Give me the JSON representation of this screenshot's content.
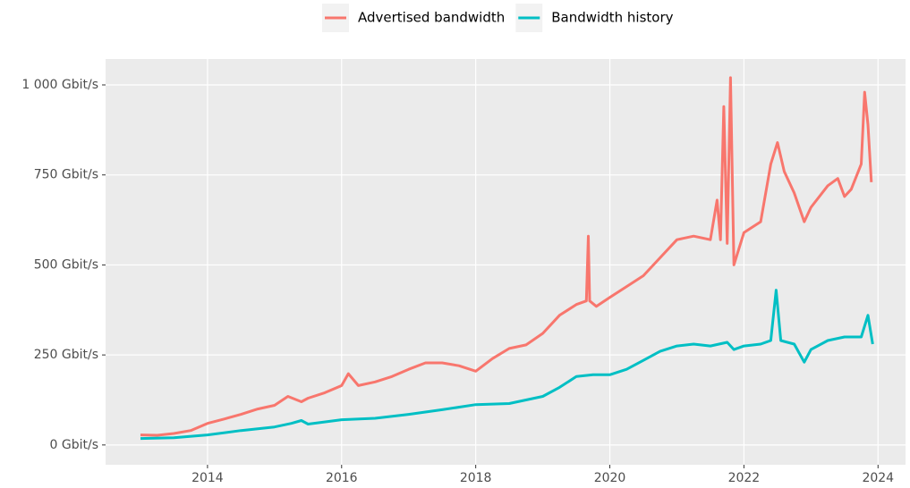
{
  "chart_data": {
    "type": "line",
    "legend": "top",
    "grid": true,
    "xlim": [
      2012.48,
      2024.41
    ],
    "xticks": [
      2014,
      2016,
      2018,
      2020,
      2022,
      2024
    ],
    "ylim": [
      -55,
      1072
    ],
    "yticks": [
      {
        "value": 0,
        "label": "0 Gbit/s"
      },
      {
        "value": 250,
        "label": "250 Gbit/s"
      },
      {
        "value": 500,
        "label": "500 Gbit/s"
      },
      {
        "value": 750,
        "label": "750 Gbit/s"
      },
      {
        "value": 1000,
        "label": "1 000 Gbit/s"
      }
    ],
    "series": [
      {
        "name": "Advertised bandwidth",
        "color": "#F8766D",
        "x": [
          2013.0,
          2013.25,
          2013.5,
          2013.75,
          2014.0,
          2014.25,
          2014.5,
          2014.75,
          2015.0,
          2015.2,
          2015.4,
          2015.5,
          2015.75,
          2016.0,
          2016.1,
          2016.25,
          2016.5,
          2016.75,
          2017.0,
          2017.25,
          2017.5,
          2017.75,
          2018.0,
          2018.25,
          2018.5,
          2018.75,
          2019.0,
          2019.25,
          2019.5,
          2019.65,
          2019.68,
          2019.7,
          2019.8,
          2020.0,
          2020.25,
          2020.5,
          2020.75,
          2021.0,
          2021.25,
          2021.5,
          2021.6,
          2021.65,
          2021.7,
          2021.75,
          2021.8,
          2021.85,
          2022.0,
          2022.25,
          2022.4,
          2022.5,
          2022.6,
          2022.75,
          2022.9,
          2023.0,
          2023.25,
          2023.4,
          2023.5,
          2023.6,
          2023.75,
          2023.8,
          2023.85,
          2023.9
        ],
        "values": [
          28,
          27,
          32,
          40,
          60,
          72,
          85,
          100,
          110,
          135,
          120,
          130,
          145,
          165,
          198,
          165,
          175,
          190,
          210,
          228,
          228,
          220,
          205,
          240,
          268,
          278,
          310,
          360,
          390,
          400,
          580,
          400,
          385,
          410,
          440,
          470,
          520,
          570,
          580,
          570,
          680,
          570,
          940,
          560,
          1020,
          500,
          590,
          620,
          780,
          840,
          760,
          700,
          620,
          660,
          720,
          740,
          690,
          710,
          780,
          980,
          890,
          730
        ]
      },
      {
        "name": "Bandwidth history",
        "color": "#00BFC4",
        "x": [
          2013.0,
          2013.5,
          2014.0,
          2014.5,
          2015.0,
          2015.25,
          2015.4,
          2015.5,
          2016.0,
          2016.5,
          2017.0,
          2017.5,
          2018.0,
          2018.5,
          2019.0,
          2019.25,
          2019.5,
          2019.75,
          2020.0,
          2020.25,
          2020.5,
          2020.75,
          2021.0,
          2021.25,
          2021.5,
          2021.75,
          2021.85,
          2022.0,
          2022.25,
          2022.4,
          2022.48,
          2022.55,
          2022.75,
          2022.9,
          2023.0,
          2023.25,
          2023.5,
          2023.6,
          2023.75,
          2023.85,
          2023.92
        ],
        "values": [
          18,
          20,
          28,
          40,
          50,
          60,
          68,
          58,
          70,
          74,
          85,
          98,
          112,
          115,
          135,
          160,
          190,
          195,
          195,
          210,
          235,
          260,
          275,
          280,
          275,
          285,
          265,
          275,
          280,
          290,
          430,
          290,
          280,
          230,
          265,
          290,
          300,
          300,
          300,
          360,
          280
        ]
      }
    ]
  }
}
